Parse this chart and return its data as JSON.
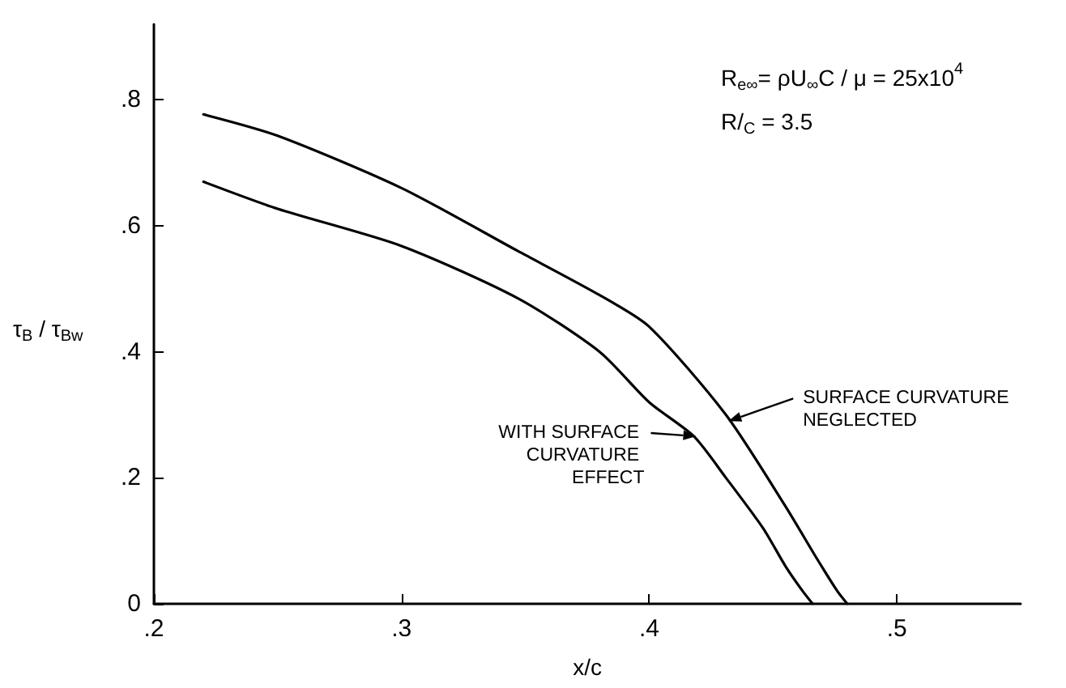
{
  "chart_data": {
    "type": "line",
    "xlabel": "x/c",
    "ylabel": "τ$_{B}$ / τ$_{Bw}$",
    "xlim": [
      0.2,
      0.55
    ],
    "ylim": [
      0,
      0.92
    ],
    "xticks": [
      {
        "value": 0.2,
        "label": ".2"
      },
      {
        "value": 0.3,
        "label": ".3"
      },
      {
        "value": 0.4,
        "label": ".4"
      },
      {
        "value": 0.5,
        "label": ".5"
      }
    ],
    "yticks": [
      {
        "value": 0,
        "label": "0"
      },
      {
        "value": 0.2,
        "label": ".2"
      },
      {
        "value": 0.4,
        "label": ".4"
      },
      {
        "value": 0.6,
        "label": ".6"
      },
      {
        "value": 0.8,
        "label": ".8"
      }
    ],
    "marker": "none",
    "line_style": "solid",
    "series": [
      {
        "color": "#000000",
        "x": [
          0.22,
          0.25,
          0.3,
          0.347,
          0.38,
          0.4,
          0.418,
          0.431,
          0.446,
          0.455,
          0.462,
          0.466
        ],
        "values": [
          0.67,
          0.627,
          0.568,
          0.485,
          0.4,
          0.32,
          0.266,
          0.2,
          0.12,
          0.06,
          0.02,
          0
        ]
      },
      {
        "color": "#000000",
        "x": [
          0.22,
          0.25,
          0.3,
          0.347,
          0.38,
          0.4,
          0.431,
          0.455,
          0.468,
          0.476,
          0.48
        ],
        "values": [
          0.777,
          0.743,
          0.66,
          0.56,
          0.49,
          0.44,
          0.3,
          0.155,
          0.07,
          0.02,
          0
        ]
      }
    ],
    "annotations": [
      "R$_{e∞}$= ρU$_{∞}$C / μ = 25x10$^{4}$",
      "R/$_{C}$ = 3.5",
      {
        "text": "WITH SURFACE CURVATURE EFFECT",
        "x": 0.419,
        "y": 0.266
      },
      {
        "text": "SURFACE CURVATURE NEGLECTED",
        "x": 0.432,
        "y": 0.29
      }
    ]
  }
}
